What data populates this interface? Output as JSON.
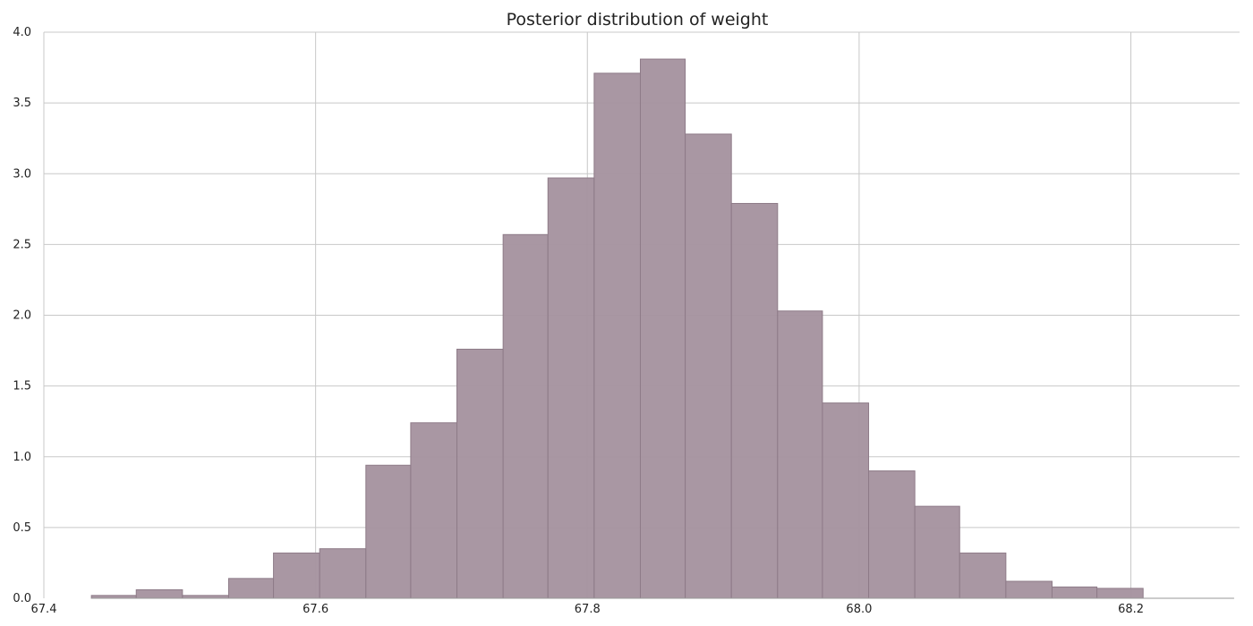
{
  "chart_data": {
    "type": "histogram",
    "title": "Posterior distribution of weight",
    "xlabel": "",
    "ylabel": "",
    "xlim": [
      67.4,
      68.28
    ],
    "ylim": [
      0,
      4.0
    ],
    "x_ticks": [
      67.4,
      67.6,
      67.8,
      68.0,
      68.2
    ],
    "x_tick_labels": [
      "67.4",
      "67.6",
      "67.8",
      "68.0",
      "68.2"
    ],
    "y_ticks": [
      0.0,
      0.5,
      1.0,
      1.5,
      2.0,
      2.5,
      3.0,
      3.5,
      4.0
    ],
    "y_tick_labels": [
      "0.0",
      "0.5",
      "1.0",
      "1.5",
      "2.0",
      "2.5",
      "3.0",
      "3.5",
      "4.0"
    ],
    "grid": true,
    "colors": {
      "bar_fill": "#a59480",
      "bar_fill_actual": "#a6939f",
      "bar_stroke": "#8e7b88",
      "grid": "#c8c8c8"
    },
    "bins": [
      {
        "x0": 67.435,
        "x1": 67.468,
        "y": 0.02
      },
      {
        "x0": 67.468,
        "x1": 67.502,
        "y": 0.06
      },
      {
        "x0": 67.502,
        "x1": 67.536,
        "y": 0.02
      },
      {
        "x0": 67.536,
        "x1": 67.569,
        "y": 0.14
      },
      {
        "x0": 67.569,
        "x1": 67.603,
        "y": 0.32
      },
      {
        "x0": 67.603,
        "x1": 67.637,
        "y": 0.35
      },
      {
        "x0": 67.637,
        "x1": 67.67,
        "y": 0.94
      },
      {
        "x0": 67.67,
        "x1": 67.704,
        "y": 1.24
      },
      {
        "x0": 67.704,
        "x1": 67.738,
        "y": 1.76
      },
      {
        "x0": 67.738,
        "x1": 67.771,
        "y": 2.57
      },
      {
        "x0": 67.771,
        "x1": 67.805,
        "y": 2.97
      },
      {
        "x0": 67.805,
        "x1": 67.839,
        "y": 3.71
      },
      {
        "x0": 67.839,
        "x1": 67.872,
        "y": 3.81
      },
      {
        "x0": 67.872,
        "x1": 67.906,
        "y": 3.28
      },
      {
        "x0": 67.906,
        "x1": 67.94,
        "y": 2.79
      },
      {
        "x0": 67.94,
        "x1": 67.973,
        "y": 2.03
      },
      {
        "x0": 67.973,
        "x1": 68.007,
        "y": 1.38
      },
      {
        "x0": 68.007,
        "x1": 68.041,
        "y": 0.9
      },
      {
        "x0": 68.041,
        "x1": 68.074,
        "y": 0.65
      },
      {
        "x0": 68.074,
        "x1": 68.108,
        "y": 0.32
      },
      {
        "x0": 68.108,
        "x1": 68.142,
        "y": 0.12
      },
      {
        "x0": 68.142,
        "x1": 68.175,
        "y": 0.08
      },
      {
        "x0": 68.175,
        "x1": 68.209,
        "y": 0.07
      },
      {
        "x0": 68.209,
        "x1": 68.276,
        "y": 0.0
      }
    ]
  }
}
